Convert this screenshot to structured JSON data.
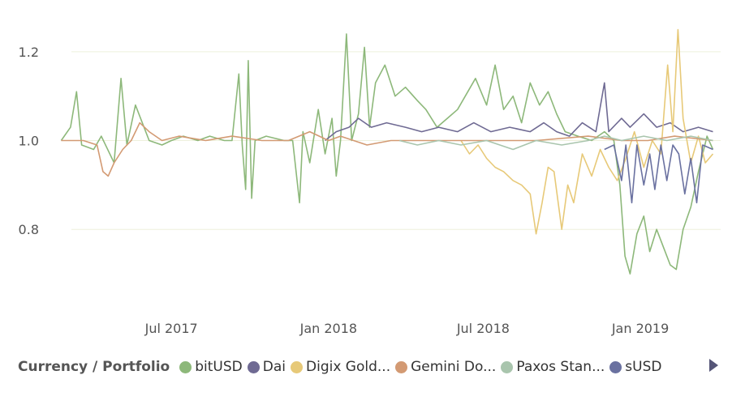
{
  "chart_data": {
    "type": "line",
    "title": "",
    "xlabel": "",
    "ylabel": "",
    "x_range": [
      "2017-02-15",
      "2019-04-05"
    ],
    "ylim": [
      0.66,
      1.28
    ],
    "yticks": [
      {
        "value": 0.8,
        "label": "0.8"
      },
      {
        "value": 1.0,
        "label": "1.0"
      },
      {
        "value": 1.2,
        "label": "1.2"
      }
    ],
    "xticks": [
      {
        "value": "2017-07-01",
        "label": "Jul 2017"
      },
      {
        "value": "2018-01-01",
        "label": "Jan 2018"
      },
      {
        "value": "2018-07-01",
        "label": "Jul 2018"
      },
      {
        "value": "2019-01-01",
        "label": "Jan 2019"
      }
    ],
    "grid": "horizontal",
    "legend_position": "bottom",
    "series": [
      {
        "name": "bitUSD",
        "color": "#8db87a",
        "width": 1.6,
        "points": [
          [
            "2017-02-22",
            1.0
          ],
          [
            "2017-03-05",
            1.03
          ],
          [
            "2017-03-12",
            1.11
          ],
          [
            "2017-03-18",
            0.99
          ],
          [
            "2017-04-01",
            0.98
          ],
          [
            "2017-04-10",
            1.01
          ],
          [
            "2017-04-25",
            0.95
          ],
          [
            "2017-05-03",
            1.14
          ],
          [
            "2017-05-10",
            0.99
          ],
          [
            "2017-05-20",
            1.08
          ],
          [
            "2017-06-05",
            1.0
          ],
          [
            "2017-06-20",
            0.99
          ],
          [
            "2017-07-01",
            1.0
          ],
          [
            "2017-07-15",
            1.01
          ],
          [
            "2017-08-01",
            1.0
          ],
          [
            "2017-08-15",
            1.01
          ],
          [
            "2017-09-01",
            1.0
          ],
          [
            "2017-09-10",
            1.0
          ],
          [
            "2017-09-18",
            1.15
          ],
          [
            "2017-09-22",
            0.99
          ],
          [
            "2017-09-26",
            0.89
          ],
          [
            "2017-09-29",
            1.18
          ],
          [
            "2017-10-03",
            0.87
          ],
          [
            "2017-10-07",
            1.0
          ],
          [
            "2017-10-20",
            1.01
          ],
          [
            "2017-11-10",
            1.0
          ],
          [
            "2017-11-20",
            1.0
          ],
          [
            "2017-11-28",
            0.86
          ],
          [
            "2017-12-02",
            1.02
          ],
          [
            "2017-12-10",
            0.95
          ],
          [
            "2017-12-20",
            1.07
          ],
          [
            "2017-12-28",
            0.97
          ],
          [
            "2018-01-05",
            1.05
          ],
          [
            "2018-01-10",
            0.92
          ],
          [
            "2018-01-15",
            1.0
          ],
          [
            "2018-01-22",
            1.24
          ],
          [
            "2018-01-28",
            1.0
          ],
          [
            "2018-02-05",
            1.06
          ],
          [
            "2018-02-12",
            1.21
          ],
          [
            "2018-02-18",
            1.03
          ],
          [
            "2018-02-25",
            1.13
          ],
          [
            "2018-03-08",
            1.17
          ],
          [
            "2018-03-20",
            1.1
          ],
          [
            "2018-04-01",
            1.12
          ],
          [
            "2018-04-15",
            1.09
          ],
          [
            "2018-04-25",
            1.07
          ],
          [
            "2018-05-08",
            1.03
          ],
          [
            "2018-05-20",
            1.05
          ],
          [
            "2018-06-01",
            1.07
          ],
          [
            "2018-06-10",
            1.1
          ],
          [
            "2018-06-22",
            1.14
          ],
          [
            "2018-07-05",
            1.08
          ],
          [
            "2018-07-15",
            1.17
          ],
          [
            "2018-07-25",
            1.07
          ],
          [
            "2018-08-05",
            1.1
          ],
          [
            "2018-08-15",
            1.04
          ],
          [
            "2018-08-25",
            1.13
          ],
          [
            "2018-09-05",
            1.08
          ],
          [
            "2018-09-15",
            1.11
          ],
          [
            "2018-09-25",
            1.06
          ],
          [
            "2018-10-05",
            1.02
          ],
          [
            "2018-10-20",
            1.01
          ],
          [
            "2018-11-05",
            1.0
          ],
          [
            "2018-11-20",
            1.02
          ],
          [
            "2018-12-01",
            1.0
          ],
          [
            "2018-12-08",
            0.9
          ],
          [
            "2018-12-14",
            0.74
          ],
          [
            "2018-12-20",
            0.7
          ],
          [
            "2018-12-28",
            0.79
          ],
          [
            "2019-01-05",
            0.83
          ],
          [
            "2019-01-12",
            0.75
          ],
          [
            "2019-01-20",
            0.8
          ],
          [
            "2019-01-28",
            0.76
          ],
          [
            "2019-02-05",
            0.72
          ],
          [
            "2019-02-12",
            0.71
          ],
          [
            "2019-02-20",
            0.8
          ],
          [
            "2019-03-01",
            0.85
          ],
          [
            "2019-03-10",
            0.93
          ],
          [
            "2019-03-20",
            1.01
          ],
          [
            "2019-03-27",
            0.98
          ]
        ]
      },
      {
        "name": "Dai",
        "color": "#6f6a93",
        "width": 1.6,
        "points": [
          [
            "2017-12-28",
            1.0
          ],
          [
            "2018-01-10",
            1.02
          ],
          [
            "2018-01-25",
            1.03
          ],
          [
            "2018-02-05",
            1.05
          ],
          [
            "2018-02-20",
            1.03
          ],
          [
            "2018-03-10",
            1.04
          ],
          [
            "2018-04-01",
            1.03
          ],
          [
            "2018-04-20",
            1.02
          ],
          [
            "2018-05-10",
            1.03
          ],
          [
            "2018-06-01",
            1.02
          ],
          [
            "2018-06-20",
            1.04
          ],
          [
            "2018-07-10",
            1.02
          ],
          [
            "2018-08-01",
            1.03
          ],
          [
            "2018-08-25",
            1.02
          ],
          [
            "2018-09-10",
            1.04
          ],
          [
            "2018-09-25",
            1.02
          ],
          [
            "2018-10-10",
            1.01
          ],
          [
            "2018-10-25",
            1.04
          ],
          [
            "2018-11-10",
            1.02
          ],
          [
            "2018-11-20",
            1.13
          ],
          [
            "2018-11-25",
            1.02
          ],
          [
            "2018-12-10",
            1.05
          ],
          [
            "2018-12-20",
            1.03
          ],
          [
            "2019-01-05",
            1.06
          ],
          [
            "2019-01-20",
            1.03
          ],
          [
            "2019-02-05",
            1.04
          ],
          [
            "2019-02-20",
            1.02
          ],
          [
            "2019-03-10",
            1.03
          ],
          [
            "2019-03-27",
            1.02
          ]
        ]
      },
      {
        "name": "Digix Gold...",
        "color": "#e7c978",
        "width": 1.6,
        "points": [
          [
            "2018-06-05",
            1.0
          ],
          [
            "2018-06-15",
            0.97
          ],
          [
            "2018-06-25",
            0.99
          ],
          [
            "2018-07-05",
            0.96
          ],
          [
            "2018-07-15",
            0.94
          ],
          [
            "2018-07-25",
            0.93
          ],
          [
            "2018-08-05",
            0.91
          ],
          [
            "2018-08-15",
            0.9
          ],
          [
            "2018-08-25",
            0.88
          ],
          [
            "2018-09-01",
            0.79
          ],
          [
            "2018-09-08",
            0.86
          ],
          [
            "2018-09-15",
            0.94
          ],
          [
            "2018-09-22",
            0.93
          ],
          [
            "2018-10-01",
            0.8
          ],
          [
            "2018-10-08",
            0.9
          ],
          [
            "2018-10-15",
            0.86
          ],
          [
            "2018-10-25",
            0.97
          ],
          [
            "2018-11-05",
            0.92
          ],
          [
            "2018-11-15",
            0.98
          ],
          [
            "2018-11-25",
            0.94
          ],
          [
            "2018-12-05",
            0.91
          ],
          [
            "2018-12-15",
            0.96
          ],
          [
            "2018-12-25",
            1.02
          ],
          [
            "2019-01-05",
            0.94
          ],
          [
            "2019-01-15",
            1.0
          ],
          [
            "2019-01-25",
            0.97
          ],
          [
            "2019-02-02",
            1.17
          ],
          [
            "2019-02-08",
            1.02
          ],
          [
            "2019-02-14",
            1.25
          ],
          [
            "2019-02-20",
            1.05
          ],
          [
            "2019-03-01",
            0.95
          ],
          [
            "2019-03-10",
            1.01
          ],
          [
            "2019-03-18",
            0.95
          ],
          [
            "2019-03-27",
            0.97
          ]
        ]
      },
      {
        "name": "Gemini Do...",
        "color": "#d39a73",
        "width": 1.6,
        "points": [
          [
            "2017-02-22",
            1.0
          ],
          [
            "2017-03-20",
            1.0
          ],
          [
            "2017-04-05",
            0.99
          ],
          [
            "2017-04-12",
            0.93
          ],
          [
            "2017-04-18",
            0.92
          ],
          [
            "2017-04-25",
            0.95
          ],
          [
            "2017-05-05",
            0.98
          ],
          [
            "2017-05-15",
            1.0
          ],
          [
            "2017-05-25",
            1.04
          ],
          [
            "2017-06-05",
            1.02
          ],
          [
            "2017-06-20",
            1.0
          ],
          [
            "2017-07-10",
            1.01
          ],
          [
            "2017-08-10",
            1.0
          ],
          [
            "2017-09-10",
            1.01
          ],
          [
            "2017-10-15",
            1.0
          ],
          [
            "2017-11-15",
            1.0
          ],
          [
            "2017-12-10",
            1.02
          ],
          [
            "2018-01-01",
            1.0
          ],
          [
            "2018-01-15",
            1.01
          ],
          [
            "2018-02-15",
            0.99
          ],
          [
            "2018-03-15",
            1.0
          ],
          [
            "2018-05-01",
            1.0
          ],
          [
            "2018-07-01",
            1.0
          ],
          [
            "2018-09-01",
            1.0
          ],
          [
            "2018-11-01",
            1.01
          ],
          [
            "2018-12-10",
            1.0
          ],
          [
            "2019-01-10",
            1.0
          ],
          [
            "2019-02-10",
            1.01
          ],
          [
            "2019-03-27",
            1.0
          ]
        ]
      },
      {
        "name": "Paxos Stan...",
        "color": "#a9c5ad",
        "width": 1.6,
        "points": [
          [
            "2018-03-25",
            1.0
          ],
          [
            "2018-04-15",
            0.99
          ],
          [
            "2018-05-10",
            1.0
          ],
          [
            "2018-06-05",
            0.99
          ],
          [
            "2018-07-05",
            1.0
          ],
          [
            "2018-08-05",
            0.98
          ],
          [
            "2018-09-01",
            1.0
          ],
          [
            "2018-10-01",
            0.99
          ],
          [
            "2018-11-01",
            1.0
          ],
          [
            "2018-11-20",
            1.01
          ],
          [
            "2018-12-10",
            1.0
          ],
          [
            "2019-01-05",
            1.01
          ],
          [
            "2019-02-01",
            1.0
          ],
          [
            "2019-03-01",
            1.01
          ],
          [
            "2019-03-27",
            1.0
          ]
        ]
      },
      {
        "name": "sUSD",
        "color": "#6a71a0",
        "width": 1.6,
        "points": [
          [
            "2018-11-20",
            0.98
          ],
          [
            "2018-12-01",
            0.99
          ],
          [
            "2018-12-10",
            0.91
          ],
          [
            "2018-12-15",
            0.99
          ],
          [
            "2018-12-22",
            0.86
          ],
          [
            "2018-12-28",
            0.99
          ],
          [
            "2019-01-05",
            0.9
          ],
          [
            "2019-01-12",
            0.97
          ],
          [
            "2019-01-18",
            0.89
          ],
          [
            "2019-01-25",
            0.99
          ],
          [
            "2019-02-01",
            0.91
          ],
          [
            "2019-02-08",
            0.99
          ],
          [
            "2019-02-15",
            0.97
          ],
          [
            "2019-02-22",
            0.88
          ],
          [
            "2019-03-01",
            0.96
          ],
          [
            "2019-03-08",
            0.86
          ],
          [
            "2019-03-15",
            0.99
          ],
          [
            "2019-03-27",
            0.98
          ]
        ]
      }
    ]
  },
  "legend": {
    "title": "Currency / Portfolio",
    "items": [
      {
        "label": "bitUSD",
        "color": "#8db87a"
      },
      {
        "label": "Dai",
        "color": "#6f6a93"
      },
      {
        "label": "Digix Gold...",
        "color": "#e7c978"
      },
      {
        "label": "Gemini Do...",
        "color": "#d39a73"
      },
      {
        "label": "Paxos Stan...",
        "color": "#a9c5ad"
      },
      {
        "label": "sUSD",
        "color": "#6a71a0"
      }
    ]
  }
}
